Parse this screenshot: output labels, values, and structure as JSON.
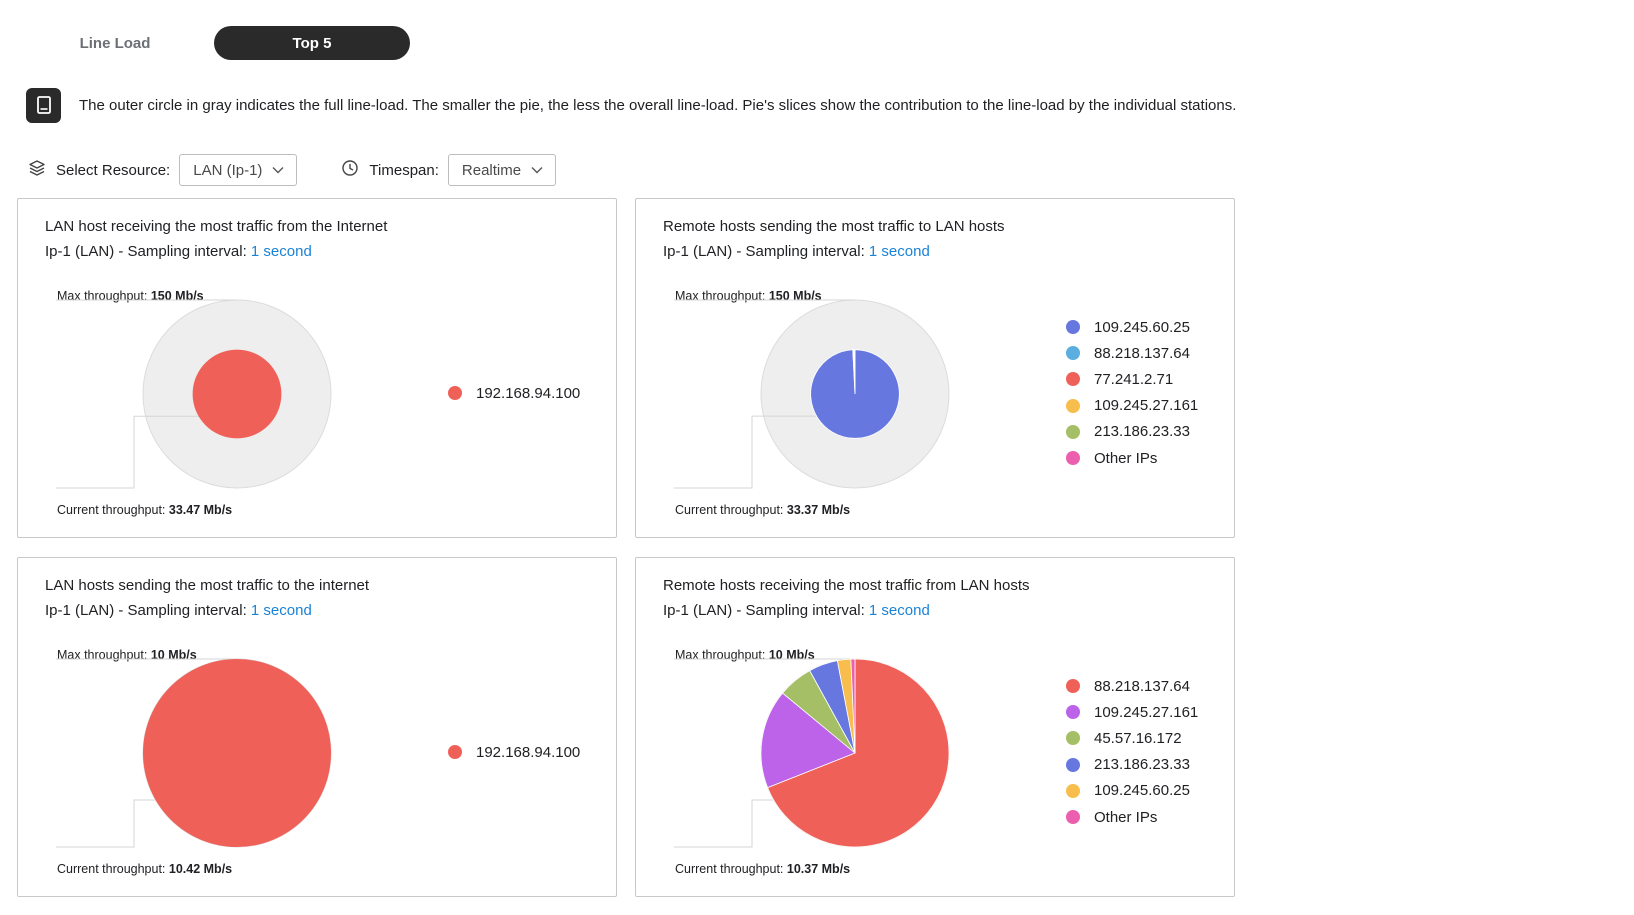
{
  "tabs": [
    {
      "label": "Line Load",
      "active": false
    },
    {
      "label": "Top 5",
      "active": true
    }
  ],
  "info": {
    "icon": "book-icon",
    "text": "The outer circle in gray indicates the full line-load. The smaller the pie, the less the overall line-load. Pie's slices show the contribution to the line-load by the individual stations."
  },
  "filters": {
    "resource_label": "Select Resource:",
    "resource_value": "LAN (Ip-1)",
    "timespan_label": "Timespan:",
    "timespan_value": "Realtime"
  },
  "cards": [
    {
      "title": "LAN host receiving the most traffic from the Internet",
      "subtitle_prefix": "Ip-1 (LAN) - Sampling interval:",
      "interval": "1 second",
      "max_label": "Max throughput:",
      "max_value": "150 Mb/s",
      "current_label": "Current throughput:",
      "current_value": "33.47 Mb/s",
      "legend": [
        {
          "label": "192.168.94.100",
          "color": "#ef6158"
        }
      ]
    },
    {
      "title": "Remote hosts sending the most traffic to LAN hosts",
      "subtitle_prefix": "Ip-1 (LAN) - Sampling interval:",
      "interval": "1 second",
      "max_label": "Max throughput:",
      "max_value": "150 Mb/s",
      "current_label": "Current throughput:",
      "current_value": "33.37 Mb/s",
      "legend": [
        {
          "label": "109.245.60.25",
          "color": "#6677e0"
        },
        {
          "label": "88.218.137.64",
          "color": "#5aaee0"
        },
        {
          "label": "77.241.2.71",
          "color": "#ef6158"
        },
        {
          "label": "109.245.27.161",
          "color": "#f7be4e"
        },
        {
          "label": "213.186.23.33",
          "color": "#a5bf67"
        },
        {
          "label": "Other IPs",
          "color": "#ec5fae"
        }
      ]
    },
    {
      "title": "LAN hosts sending the most traffic to the internet",
      "subtitle_prefix": "Ip-1 (LAN) - Sampling interval:",
      "interval": "1 second",
      "max_label": "Max throughput:",
      "max_value": "10 Mb/s",
      "current_label": "Current throughput:",
      "current_value": "10.42 Mb/s",
      "legend": [
        {
          "label": "192.168.94.100",
          "color": "#ef6158"
        }
      ]
    },
    {
      "title": "Remote hosts receiving the most traffic from LAN hosts",
      "subtitle_prefix": "Ip-1 (LAN) - Sampling interval:",
      "interval": "1 second",
      "max_label": "Max throughput:",
      "max_value": "10 Mb/s",
      "current_label": "Current throughput:",
      "current_value": "10.37 Mb/s",
      "legend": [
        {
          "label": "88.218.137.64",
          "color": "#ef6158"
        },
        {
          "label": "109.245.27.161",
          "color": "#bd63e9"
        },
        {
          "label": "45.57.16.172",
          "color": "#a5bf67"
        },
        {
          "label": "213.186.23.33",
          "color": "#6677e0"
        },
        {
          "label": "109.245.60.25",
          "color": "#f7be4e"
        },
        {
          "label": "Other IPs",
          "color": "#ec5fae"
        }
      ]
    }
  ],
  "chart_data": [
    {
      "type": "pie",
      "title": "LAN host receiving the most traffic from the Internet",
      "max_throughput_mbps": 150,
      "current_throughput_mbps": 33.47,
      "categories": [
        "192.168.94.100"
      ],
      "values": [
        100
      ]
    },
    {
      "type": "pie",
      "title": "Remote hosts sending the most traffic to LAN hosts",
      "max_throughput_mbps": 150,
      "current_throughput_mbps": 33.37,
      "categories": [
        "109.245.60.25",
        "88.218.137.64",
        "77.241.2.71",
        "109.245.27.161",
        "213.186.23.33",
        "Other IPs"
      ],
      "values": [
        99.2,
        0.3,
        0.2,
        0.1,
        0.1,
        0.1
      ]
    },
    {
      "type": "pie",
      "title": "LAN hosts sending the most traffic to the internet",
      "max_throughput_mbps": 10,
      "current_throughput_mbps": 10.42,
      "categories": [
        "192.168.94.100"
      ],
      "values": [
        100
      ]
    },
    {
      "type": "pie",
      "title": "Remote hosts receiving the most traffic from LAN hosts",
      "max_throughput_mbps": 10,
      "current_throughput_mbps": 10.37,
      "categories": [
        "88.218.137.64",
        "109.245.27.161",
        "45.57.16.172",
        "213.186.23.33",
        "109.245.60.25",
        "Other IPs"
      ],
      "values": [
        69,
        17,
        6,
        5,
        2.3,
        0.7
      ]
    }
  ]
}
